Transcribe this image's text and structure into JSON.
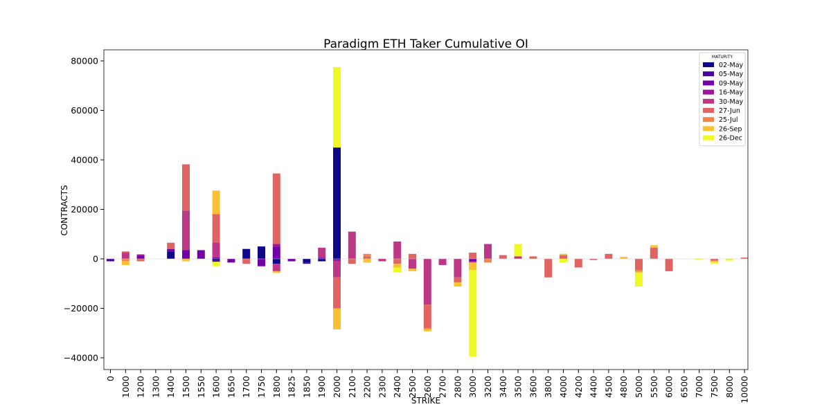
{
  "chart_data": {
    "type": "bar",
    "stacked": true,
    "title": "Paradigm ETH Taker Cumulative OI",
    "xlabel": "STRIKE",
    "ylabel": "CONTRACTS",
    "ylim": [
      -45000,
      85000
    ],
    "yticks": [
      -40000,
      -20000,
      0,
      20000,
      40000,
      60000,
      80000
    ],
    "ytick_labels": [
      "−40000",
      "−20000",
      "0",
      "20000",
      "40000",
      "60000",
      "80000"
    ],
    "grid": false,
    "legend": {
      "title": "MATURITY",
      "placement": "top-right"
    },
    "categories": [
      "0",
      "1000",
      "1200",
      "1300",
      "1400",
      "1500",
      "1550",
      "1600",
      "1650",
      "1700",
      "1750",
      "1800",
      "1825",
      "1850",
      "1900",
      "2000",
      "2100",
      "2200",
      "2300",
      "2400",
      "2500",
      "2600",
      "2700",
      "2800",
      "3000",
      "3200",
      "3400",
      "3500",
      "3600",
      "3800",
      "4000",
      "4200",
      "4400",
      "4500",
      "4800",
      "5000",
      "5500",
      "6000",
      "6500",
      "7000",
      "7500",
      "8000",
      "10000"
    ],
    "series": [
      {
        "name": "02-May",
        "color": "#0d0887",
        "values": [
          0,
          0,
          0,
          0,
          3000,
          0,
          0,
          -600,
          0,
          4000,
          5000,
          -2000,
          0,
          -1500,
          -1000,
          45000,
          0,
          0,
          0,
          0,
          0,
          0,
          0,
          0,
          0,
          0,
          0,
          0,
          0,
          0,
          0,
          0,
          0,
          0,
          0,
          0,
          0,
          0,
          0,
          0,
          0,
          0,
          0
        ]
      },
      {
        "name": "05-May",
        "color": "#47039f",
        "values": [
          -1000,
          0,
          0,
          0,
          0,
          0,
          0,
          -600,
          0,
          0,
          0,
          0,
          0,
          -500,
          0,
          -500,
          0,
          0,
          0,
          0,
          0,
          0,
          0,
          0,
          0,
          0,
          0,
          0,
          0,
          0,
          0,
          0,
          0,
          0,
          0,
          0,
          0,
          0,
          0,
          0,
          0,
          0,
          0
        ]
      },
      {
        "name": "09-May",
        "color": "#7301a8",
        "values": [
          0,
          0,
          1300,
          0,
          1000,
          3500,
          3500,
          600,
          -1500,
          0,
          -3000,
          5000,
          -1000,
          0,
          500,
          0,
          0,
          0,
          0,
          0,
          0,
          0,
          0,
          0,
          -1000,
          0,
          0,
          0,
          0,
          0,
          0,
          0,
          0,
          0,
          0,
          0,
          0,
          0,
          0,
          0,
          0,
          0,
          0
        ]
      },
      {
        "name": "16-May",
        "color": "#9c179e",
        "values": [
          0,
          0,
          500,
          0,
          0,
          0,
          0,
          0,
          0,
          0,
          0,
          1000,
          0,
          0,
          0,
          -500,
          0,
          0,
          0,
          0,
          0,
          0,
          0,
          0,
          0,
          0,
          0,
          0,
          0,
          0,
          0,
          0,
          0,
          0,
          0,
          0,
          0,
          0,
          0,
          0,
          0,
          0,
          0
        ]
      },
      {
        "name": "30-May",
        "color": "#bd3786",
        "values": [
          0,
          2500,
          0,
          0,
          0,
          16000,
          0,
          6000,
          0,
          0,
          0,
          -3000,
          0,
          0,
          4000,
          -6500,
          11000,
          0,
          -1000,
          7000,
          -4000,
          -18500,
          -2500,
          -7500,
          -500,
          6000,
          0,
          1000,
          0,
          0,
          0,
          0,
          0,
          0,
          0,
          0,
          0,
          0,
          0,
          0,
          0,
          0,
          0
        ]
      },
      {
        "name": "27-Jun",
        "color": "#e16462",
        "values": [
          0,
          500,
          -1000,
          0,
          2500,
          18700,
          0,
          11500,
          0,
          -2000,
          0,
          28500,
          0,
          0,
          0,
          -12500,
          -2000,
          1000,
          0,
          -2000,
          2000,
          -9500,
          0,
          -2000,
          2500,
          0,
          1500,
          0,
          1000,
          -7500,
          1500,
          -3500,
          -500,
          2000,
          0,
          -4500,
          4500,
          -5000,
          0,
          0,
          -800,
          0,
          500
        ]
      },
      {
        "name": "25-Jul",
        "color": "#f2844b",
        "values": [
          0,
          -1000,
          0,
          0,
          0,
          0,
          0,
          0,
          0,
          0,
          0,
          0,
          0,
          0,
          0,
          0,
          0,
          1000,
          0,
          0,
          0,
          -500,
          0,
          0,
          0,
          -1500,
          0,
          0,
          0,
          0,
          0,
          0,
          0,
          0,
          0,
          -700,
          0,
          0,
          0,
          0,
          0,
          0,
          0
        ]
      },
      {
        "name": "26-Sep",
        "color": "#fcc030",
        "values": [
          0,
          -1500,
          0,
          0,
          0,
          -1000,
          0,
          9500,
          0,
          0,
          0,
          -700,
          0,
          0,
          0,
          -8500,
          0,
          -1500,
          0,
          -1500,
          -1000,
          -800,
          0,
          -1700,
          -3000,
          0,
          0,
          0,
          0,
          0,
          500,
          0,
          0,
          0,
          800,
          -500,
          1000,
          0,
          0,
          0,
          -500,
          0,
          0
        ]
      },
      {
        "name": "26-Dec",
        "color": "#f0f921",
        "values": [
          0,
          0,
          0,
          0,
          0,
          0,
          0,
          -1800,
          0,
          0,
          0,
          0,
          0,
          0,
          0,
          32500,
          0,
          0,
          0,
          -2000,
          0,
          0,
          0,
          0,
          -35000,
          0,
          0,
          5000,
          0,
          0,
          -1500,
          0,
          0,
          0,
          0,
          -5500,
          0,
          0,
          0,
          -300,
          -600,
          -700,
          0
        ]
      }
    ]
  }
}
